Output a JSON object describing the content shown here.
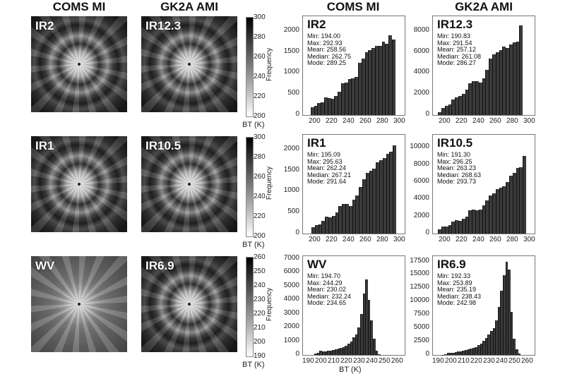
{
  "headers": {
    "left_coms": "COMS MI",
    "left_gk2a": "GK2A AMI",
    "right_coms": "COMS MI",
    "right_gk2a": "GK2A AMI"
  },
  "images": [
    {
      "coms": "IR2",
      "gk2a": "IR12.3"
    },
    {
      "coms": "IR1",
      "gk2a": "IR10.5"
    },
    {
      "coms": "WV",
      "gk2a": "IR6.9"
    }
  ],
  "colorbars": [
    {
      "ticks": [
        "300",
        "280",
        "260",
        "240",
        "220",
        "200"
      ],
      "label": "BT (K)"
    },
    {
      "ticks": [
        "300",
        "280",
        "260",
        "240",
        "220",
        "200"
      ],
      "label": "BT (K)"
    },
    {
      "ticks": [
        "260",
        "250",
        "240",
        "230",
        "220",
        "210",
        "200",
        "190"
      ],
      "label": "BT (K)"
    }
  ],
  "axis_labels": {
    "ylabel": "Frequency",
    "xlabel": "BT (K)"
  },
  "chart_data": [
    {
      "type": "bar",
      "title": "IR2",
      "stats": [
        "Min: 194.00",
        "Max: 292.93",
        "Mean: 258.56",
        "Median: 262.75",
        "Mode: 289.25"
      ],
      "bin_start": 194,
      "bin_width": 4,
      "values": [
        180,
        220,
        280,
        300,
        420,
        400,
        390,
        450,
        560,
        750,
        780,
        850,
        880,
        900,
        1250,
        1350,
        1500,
        1550,
        1600,
        1650,
        1650,
        1750,
        1700,
        1900,
        1800
      ],
      "xlim": [
        185,
        305
      ],
      "xticks": [
        200,
        220,
        240,
        260,
        280,
        300
      ],
      "ylim": [
        0,
        2350
      ],
      "yticks": [
        0,
        500,
        1000,
        1500,
        2000
      ],
      "ylabel": "Frequency"
    },
    {
      "type": "bar",
      "title": "IR12.3",
      "stats": [
        "Min: 190.83",
        "Max: 291.54",
        "Mean: 257.12",
        "Median: 261.08",
        "Mode: 286.27"
      ],
      "bin_start": 191,
      "bin_width": 4,
      "values": [
        300,
        700,
        900,
        1000,
        1500,
        1700,
        1800,
        2000,
        2400,
        3000,
        3200,
        3200,
        3100,
        3500,
        4300,
        5400,
        5800,
        6000,
        6200,
        6500,
        6400,
        6700,
        6900,
        7000,
        8500
      ],
      "xlim": [
        185,
        305
      ],
      "xticks": [
        200,
        220,
        240,
        260,
        280,
        300
      ],
      "ylim": [
        0,
        9400
      ],
      "yticks": [
        0,
        2000,
        4000,
        6000,
        8000
      ]
    },
    {
      "type": "bar",
      "title": "IR1",
      "stats": [
        "Min: 195.09",
        "Max: 295.63",
        "Mean: 262.24",
        "Median: 267.21",
        "Mode: 291.64"
      ],
      "bin_start": 195,
      "bin_width": 4,
      "values": [
        150,
        200,
        220,
        300,
        400,
        380,
        420,
        500,
        650,
        700,
        700,
        650,
        800,
        900,
        1100,
        1300,
        1450,
        1500,
        1550,
        1700,
        1750,
        1800,
        1900,
        1950,
        2100
      ],
      "xlim": [
        185,
        305
      ],
      "xticks": [
        200,
        220,
        240,
        260,
        280,
        300
      ],
      "ylim": [
        0,
        2350
      ],
      "yticks": [
        0,
        500,
        1000,
        1500,
        2000
      ],
      "ylabel": "Frequency"
    },
    {
      "type": "bar",
      "title": "IR10.5",
      "stats": [
        "Min: 191.30",
        "Max: 296.25",
        "Mean: 263.23",
        "Median: 268.63",
        "Mode: 293.73"
      ],
      "bin_start": 191,
      "bin_width": 4,
      "values": [
        500,
        800,
        800,
        1000,
        1400,
        1600,
        1500,
        1700,
        2000,
        2700,
        2800,
        2700,
        2800,
        3300,
        3900,
        4400,
        4700,
        5200,
        5300,
        5500,
        6000,
        6700,
        7100,
        7600,
        7700,
        9000
      ],
      "xlim": [
        185,
        305
      ],
      "xticks": [
        200,
        220,
        240,
        260,
        280,
        300
      ],
      "ylim": [
        0,
        11500
      ],
      "yticks": [
        0,
        2000,
        4000,
        6000,
        8000,
        10000
      ]
    },
    {
      "type": "bar",
      "title": "WV",
      "stats": [
        "Min: 194.70",
        "Max: 244.29",
        "Mean: 230.02",
        "Median: 232.24",
        "Mode: 234.65"
      ],
      "bin_start": 194,
      "bin_width": 2,
      "values": [
        80,
        150,
        300,
        280,
        250,
        300,
        320,
        350,
        420,
        450,
        500,
        550,
        650,
        800,
        1000,
        1300,
        1500,
        2000,
        3000,
        4500,
        5500,
        4000,
        2500,
        1200,
        300,
        50
      ],
      "xlim": [
        185,
        265
      ],
      "xticks": [
        190,
        200,
        210,
        220,
        230,
        240,
        250,
        260
      ],
      "ylim": [
        0,
        7200
      ],
      "yticks": [
        0,
        1000,
        2000,
        3000,
        4000,
        5000,
        6000,
        7000
      ],
      "ylabel": "Frequency",
      "xlabel": "BT (K)"
    },
    {
      "type": "bar",
      "title": "IR6.9",
      "stats": [
        "Min: 192.33",
        "Max: 253.89",
        "Mean: 235.19",
        "Median: 238.43",
        "Mode: 242.98"
      ],
      "bin_start": 192,
      "bin_width": 2,
      "values": [
        50,
        200,
        350,
        400,
        450,
        500,
        600,
        700,
        800,
        950,
        1050,
        1150,
        1300,
        1500,
        1800,
        2100,
        2600,
        3200,
        3900,
        4500,
        5000,
        6500,
        9000,
        12000,
        15000,
        17500,
        16000,
        8000,
        3000,
        1000,
        300
      ],
      "xlim": [
        185,
        265
      ],
      "xticks": [
        190,
        200,
        210,
        220,
        230,
        240,
        250,
        260
      ],
      "ylim": [
        0,
        18500
      ],
      "yticks": [
        0,
        2500,
        5000,
        7500,
        10000,
        12500,
        15000,
        17500
      ]
    }
  ]
}
